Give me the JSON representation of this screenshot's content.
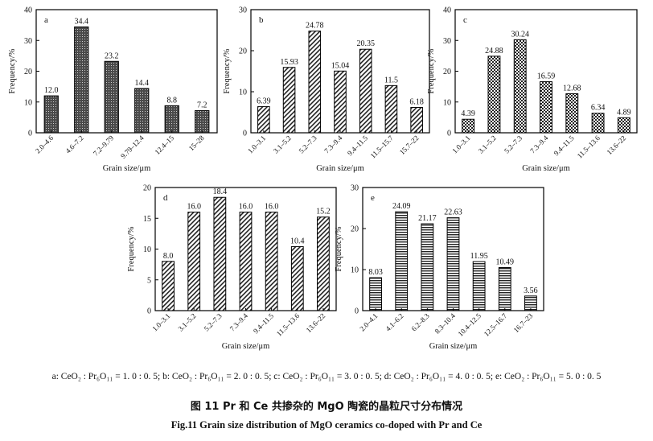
{
  "figure": {
    "legend_note": "a: CeO₂ : Pr₆O₁₁ = 1. 0 : 0. 5; b: CeO₂ : Pr₆O₁₁ = 2. 0 : 0. 5; c: CeO₂ : Pr₆O₁₁ = 3. 0 : 0. 5; d: CeO₂ : Pr₆O₁₁ = 4. 0 : 0. 5; e: CeO₂ : Pr₆O₁₁ = 5. 0 : 0. 5",
    "caption_cn": "图 11   Pr 和 Ce 共掺杂的 MgO 陶瓷的晶粒尺寸分布情况",
    "caption_en": "Fig.11   Grain size distribution of MgO ceramics co-doped with Pr and Ce"
  },
  "chart_data": [
    {
      "type": "bar",
      "panel": "a",
      "pattern": "dense",
      "xlabel": "Grain size/μm",
      "ylabel": "Frequency/%",
      "ylim": [
        0,
        40
      ],
      "yticks": [
        0,
        10,
        20,
        30,
        40
      ],
      "categories": [
        "2.0–4.6",
        "4.6–7.2",
        "7.2–9.79",
        "9.79–12.4",
        "12.4–15",
        "15–28"
      ],
      "values": [
        12.0,
        34.4,
        23.2,
        14.4,
        8.8,
        7.2
      ],
      "labels": [
        "12.0",
        "34.4",
        "23.2",
        "14.4",
        "8.8",
        "7.2"
      ]
    },
    {
      "type": "bar",
      "panel": "b",
      "pattern": "diag",
      "xlabel": "Grain size/μm",
      "ylabel": "Frequency/%",
      "ylim": [
        0,
        30
      ],
      "yticks": [
        0,
        10,
        20,
        30
      ],
      "categories": [
        "1.0–3.1",
        "3.1–5.2",
        "5.2–7.3",
        "7.3–9.4",
        "9.4–11.5",
        "11.5–15.7",
        "15.7–22"
      ],
      "values": [
        6.39,
        15.93,
        24.78,
        15.04,
        20.35,
        11.5,
        6.18
      ],
      "labels": [
        "6.39",
        "15.93",
        "24.78",
        "15.04",
        "20.35",
        "11.5",
        "6.18"
      ]
    },
    {
      "type": "bar",
      "panel": "c",
      "pattern": "check",
      "xlabel": "Grain size/μm",
      "ylabel": "Frequency/%",
      "ylim": [
        0,
        40
      ],
      "yticks": [
        0,
        10,
        20,
        30,
        40
      ],
      "categories": [
        "1.0–3.1",
        "3.1–5.2",
        "5.2–7.3",
        "7.3–9.4",
        "9.4–11.5",
        "11.5–13.6",
        "13.6–22"
      ],
      "values": [
        4.39,
        24.88,
        30.24,
        16.59,
        12.68,
        6.34,
        4.89
      ],
      "labels": [
        "4.39",
        "24.88",
        "30.24",
        "16.59",
        "12.68",
        "6.34",
        "4.89"
      ]
    },
    {
      "type": "bar",
      "panel": "d",
      "pattern": "diag",
      "xlabel": "Grain size/μm",
      "ylabel": "Frequency/%",
      "ylim": [
        0,
        20
      ],
      "yticks": [
        0,
        5,
        10,
        15,
        20
      ],
      "categories": [
        "1.0–3.1",
        "3.1–5.2",
        "5.2–7.3",
        "7.3–9.4",
        "9.4–11.5",
        "11.5–13.6",
        "13.6–22"
      ],
      "values": [
        8.0,
        16.0,
        18.4,
        16.0,
        16.0,
        10.4,
        15.2
      ],
      "labels": [
        "8.0",
        "16.0",
        "18.4",
        "16.0",
        "16.0",
        "10.4",
        "15.2"
      ]
    },
    {
      "type": "bar",
      "panel": "e",
      "pattern": "horiz",
      "xlabel": "Grain size/μm",
      "ylabel": "Frequency/%",
      "ylim": [
        0,
        30
      ],
      "yticks": [
        0,
        10,
        20,
        30
      ],
      "categories": [
        "2.0–4.1",
        "4.1–6.2",
        "6.2–8.3",
        "8.3–10.4",
        "10.4–12.5",
        "12.5–16.7",
        "16.7–23"
      ],
      "values": [
        8.03,
        24.09,
        21.17,
        22.63,
        11.95,
        10.49,
        3.56
      ],
      "labels": [
        "8.03",
        "24.09",
        "21.17",
        "22.63",
        "11.95",
        "10.49",
        "3.56"
      ]
    }
  ]
}
